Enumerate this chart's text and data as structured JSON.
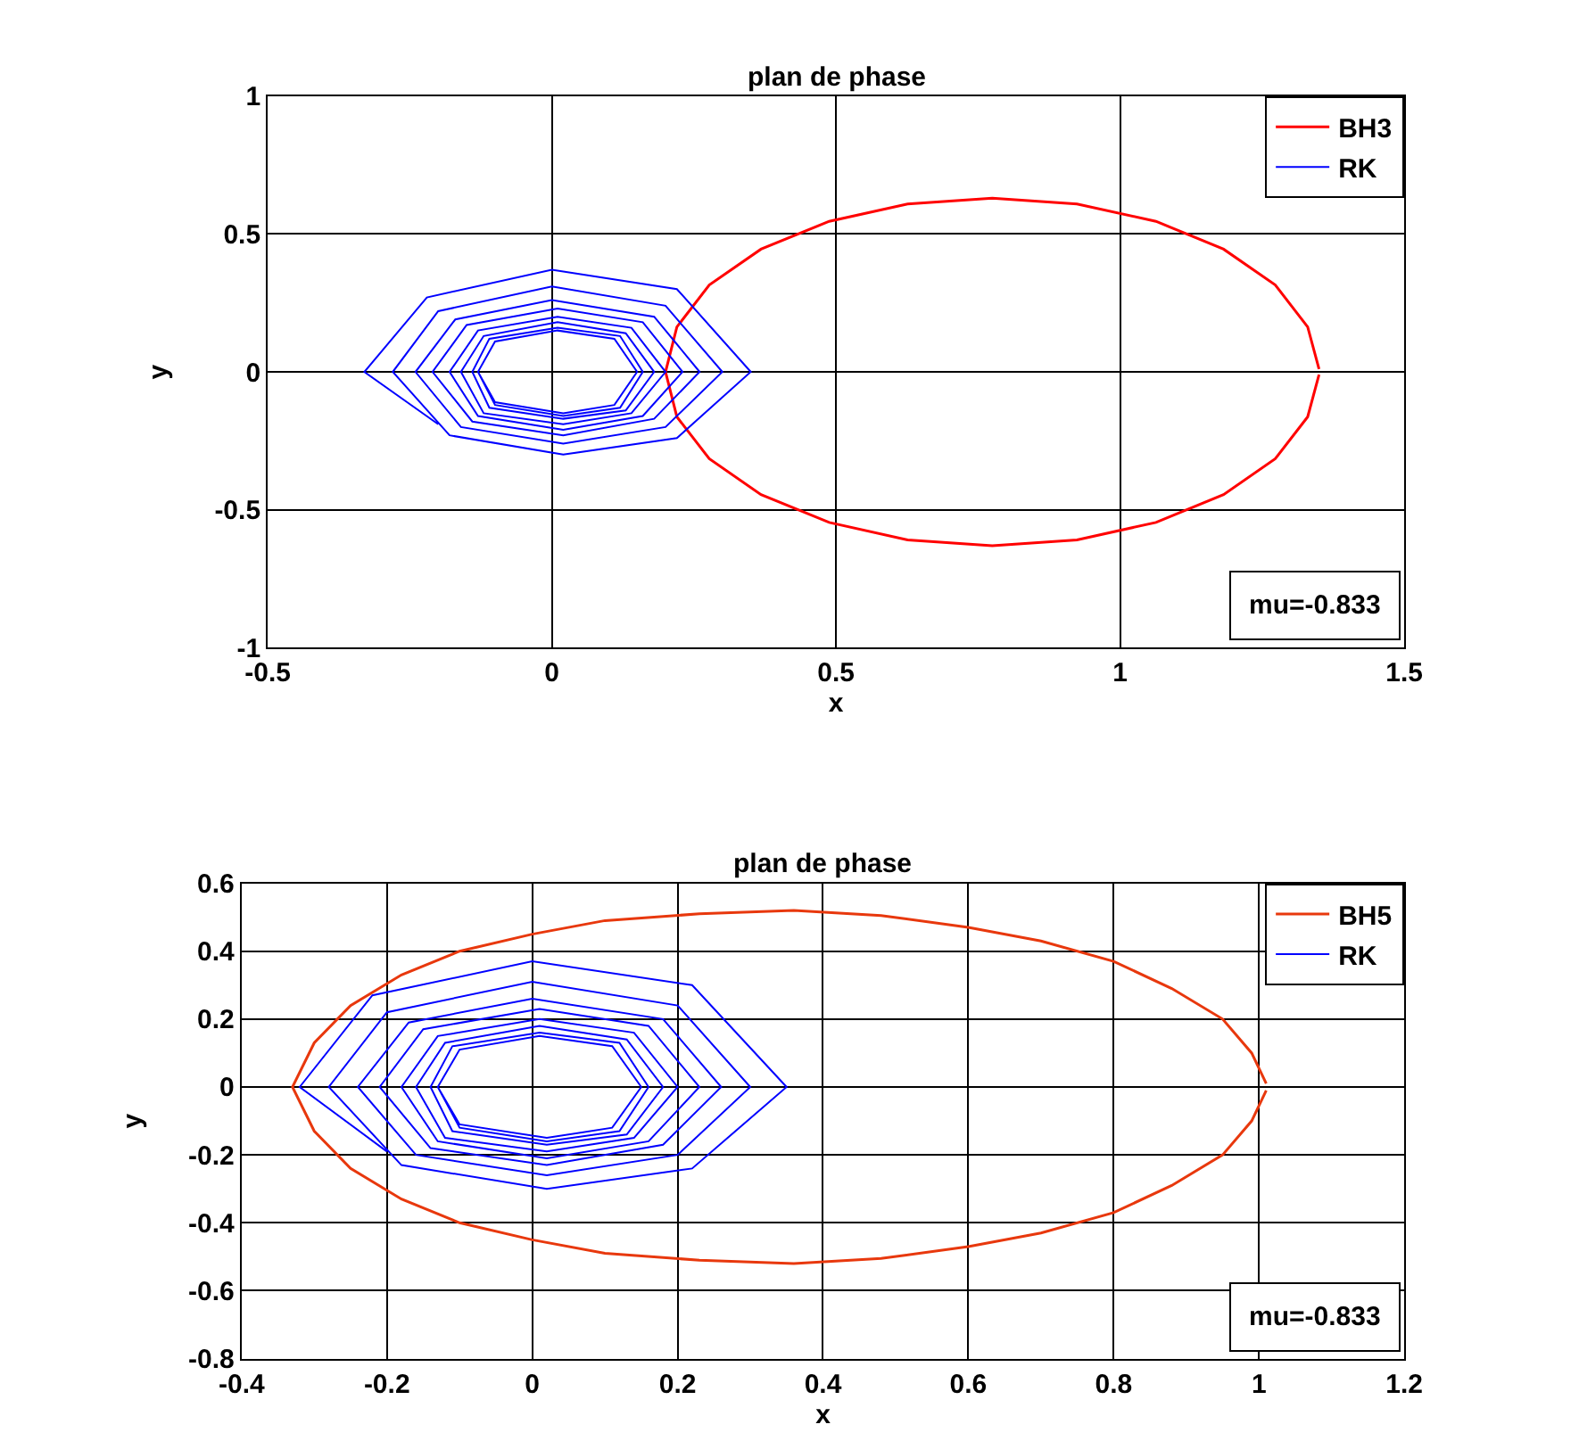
{
  "chart_data": [
    {
      "type": "line",
      "title": "plan de phase",
      "xlabel": "x",
      "ylabel": "y",
      "xlim": [
        -0.5,
        1.5
      ],
      "xticks": [
        -0.5,
        0,
        0.5,
        1,
        1.5
      ],
      "ylim": [
        -1,
        1
      ],
      "yticks": [
        -1,
        -0.5,
        0,
        0.5,
        1
      ],
      "grid": true,
      "legend": "top right",
      "marker": "none",
      "line_style": "solid",
      "annotations": [
        "mu=-0.833"
      ],
      "series": [
        {
          "name": "BH3",
          "color": "#ff0000",
          "x": [
            1.35,
            1.33,
            1.273,
            1.182,
            1.063,
            0.924,
            0.775,
            0.626,
            0.488,
            0.368,
            0.277,
            0.22,
            0.2,
            0.22,
            0.277,
            0.368,
            0.488,
            0.626,
            0.775,
            0.924,
            1.063,
            1.182,
            1.273,
            1.33,
            1.35
          ],
          "values": [
            0.01,
            0.163,
            0.315,
            0.445,
            0.546,
            0.609,
            0.63,
            0.609,
            0.546,
            0.445,
            0.315,
            0.163,
            0,
            -0.163,
            -0.315,
            -0.445,
            -0.546,
            -0.609,
            -0.63,
            -0.609,
            -0.546,
            -0.445,
            -0.315,
            -0.163,
            -0.01
          ]
        },
        {
          "name": "RK",
          "color": "#0000ff",
          "x": [
            -0.2,
            -0.33,
            -0.22,
            0.0,
            0.22,
            0.35,
            0.22,
            0.02,
            -0.18,
            -0.28,
            -0.2,
            0.0,
            0.2,
            0.3,
            0.2,
            0.02,
            -0.16,
            -0.24,
            -0.17,
            0.0,
            0.18,
            0.26,
            0.18,
            0.02,
            -0.14,
            -0.21,
            -0.15,
            0.01,
            0.16,
            0.23,
            0.16,
            0.02,
            -0.13,
            -0.18,
            -0.13,
            0.01,
            0.14,
            0.2,
            0.14,
            0.02,
            -0.12,
            -0.16,
            -0.12,
            0.01,
            0.13,
            0.18,
            0.13,
            0.02,
            -0.11,
            -0.14,
            -0.11,
            0.01,
            0.12,
            0.16,
            0.12,
            0.02,
            -0.1,
            -0.13,
            -0.1,
            0.01,
            0.11,
            0.15,
            0.11,
            0.02,
            -0.1,
            -0.13
          ],
          "values": [
            -0.19,
            0,
            0.27,
            0.37,
            0.3,
            0,
            -0.24,
            -0.3,
            -0.23,
            0,
            0.22,
            0.31,
            0.24,
            0,
            -0.2,
            -0.26,
            -0.2,
            0,
            0.19,
            0.26,
            0.2,
            0,
            -0.17,
            -0.23,
            -0.18,
            0,
            0.17,
            0.23,
            0.18,
            0,
            -0.16,
            -0.21,
            -0.16,
            0,
            0.15,
            0.2,
            0.16,
            0,
            -0.15,
            -0.19,
            -0.15,
            0,
            0.13,
            0.18,
            0.14,
            0,
            -0.14,
            -0.17,
            -0.13,
            0,
            0.12,
            0.16,
            0.13,
            0,
            -0.13,
            -0.16,
            -0.12,
            0,
            0.11,
            0.15,
            0.12,
            0,
            -0.12,
            -0.15,
            -0.11,
            0
          ]
        }
      ]
    },
    {
      "type": "line",
      "title": "plan de phase",
      "xlabel": "x",
      "ylabel": "y",
      "xlim": [
        -0.4,
        1.2
      ],
      "xticks": [
        -0.4,
        -0.2,
        0,
        0.2,
        0.4,
        0.6,
        0.8,
        1,
        1.2
      ],
      "ylim": [
        -0.8,
        0.6
      ],
      "yticks": [
        -0.8,
        -0.6,
        -0.4,
        -0.2,
        0,
        0.2,
        0.4,
        0.6
      ],
      "grid": true,
      "legend": "top right",
      "marker": "none",
      "line_style": "solid",
      "annotations": [
        "mu=-0.833"
      ],
      "series": [
        {
          "name": "BH5",
          "color": "#e8380d",
          "x": [
            1.01,
            0.99,
            0.95,
            0.88,
            0.8,
            0.7,
            0.6,
            0.48,
            0.36,
            0.23,
            0.1,
            0,
            -0.1,
            -0.18,
            -0.25,
            -0.3,
            -0.33,
            -0.3,
            -0.25,
            -0.18,
            -0.1,
            0,
            0.1,
            0.23,
            0.36,
            0.48,
            0.6,
            0.7,
            0.8,
            0.88,
            0.95,
            0.99,
            1.01
          ],
          "values": [
            0.01,
            0.1,
            0.2,
            0.29,
            0.37,
            0.43,
            0.47,
            0.505,
            0.52,
            0.51,
            0.49,
            0.45,
            0.4,
            0.33,
            0.24,
            0.13,
            0,
            -0.13,
            -0.24,
            -0.33,
            -0.4,
            -0.45,
            -0.49,
            -0.51,
            -0.52,
            -0.505,
            -0.47,
            -0.43,
            -0.37,
            -0.29,
            -0.2,
            -0.1,
            -0.01
          ]
        },
        {
          "name": "RK",
          "color": "#0000ff",
          "x": [
            -0.2,
            -0.32,
            -0.22,
            0.0,
            0.22,
            0.35,
            0.22,
            0.02,
            -0.18,
            -0.28,
            -0.2,
            0.0,
            0.2,
            0.3,
            0.2,
            0.02,
            -0.16,
            -0.24,
            -0.17,
            0.0,
            0.18,
            0.26,
            0.18,
            0.02,
            -0.14,
            -0.21,
            -0.15,
            0.01,
            0.16,
            0.23,
            0.16,
            0.02,
            -0.13,
            -0.18,
            -0.13,
            0.01,
            0.14,
            0.2,
            0.14,
            0.02,
            -0.12,
            -0.16,
            -0.12,
            0.01,
            0.13,
            0.18,
            0.13,
            0.02,
            -0.11,
            -0.14,
            -0.11,
            0.01,
            0.12,
            0.16,
            0.12,
            0.02,
            -0.1,
            -0.13,
            -0.1,
            0.01,
            0.11,
            0.15,
            0.11,
            0.02,
            -0.1,
            -0.13
          ],
          "values": [
            -0.19,
            0,
            0.27,
            0.37,
            0.3,
            0,
            -0.24,
            -0.3,
            -0.23,
            0,
            0.22,
            0.31,
            0.24,
            0,
            -0.2,
            -0.26,
            -0.2,
            0,
            0.19,
            0.26,
            0.2,
            0,
            -0.17,
            -0.23,
            -0.18,
            0,
            0.17,
            0.23,
            0.18,
            0,
            -0.16,
            -0.21,
            -0.16,
            0,
            0.15,
            0.2,
            0.16,
            0,
            -0.15,
            -0.19,
            -0.15,
            0,
            0.13,
            0.18,
            0.14,
            0,
            -0.14,
            -0.17,
            -0.13,
            0,
            0.12,
            0.16,
            0.13,
            0,
            -0.13,
            -0.16,
            -0.12,
            0,
            0.11,
            0.15,
            0.12,
            0,
            -0.12,
            -0.15,
            -0.11,
            0
          ]
        }
      ]
    }
  ]
}
